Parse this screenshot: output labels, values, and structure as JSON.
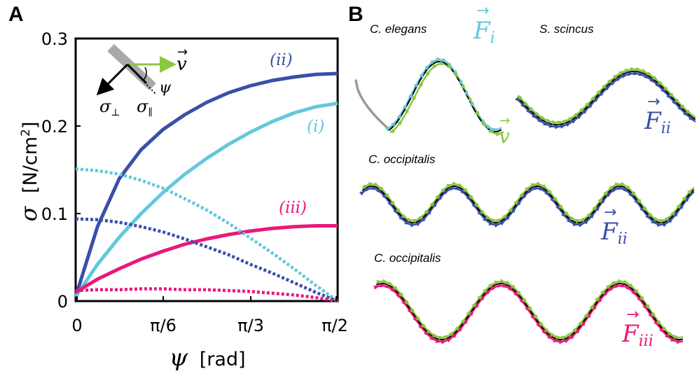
{
  "panel_a": {
    "letter": "A",
    "ylabel_symbol": "σ",
    "ylabel_units": "[N/cm",
    "ylabel_sup": "2",
    "ylabel_close": "]",
    "xlabel_symbol": "ψ",
    "xlabel_units": "[rad]",
    "xticks": [
      "0",
      "π/6",
      "π/3",
      "π/2"
    ],
    "yticks": [
      "0",
      "0.1",
      "0.2",
      "0.3"
    ],
    "inset": {
      "v_label": "v",
      "v_arrow": "→",
      "psi": "ψ",
      "sigma_perp": "σ",
      "perp_sub": "⊥",
      "sigma_par": "σ",
      "par_sub": "∥"
    },
    "curve_labels": {
      "ii": "(ii)",
      "i": "(i)",
      "iii": "(iii)"
    }
  },
  "panel_b": {
    "letter": "B",
    "species": [
      "C. elegans",
      "S. scincus",
      "C. occipitalis",
      "C. occipitalis"
    ],
    "force_labels": {
      "i": "F",
      "i_sub": "i",
      "ii": "F",
      "ii_sub": "ii",
      "iii": "F",
      "iii_sub": "iii",
      "v": "v",
      "arrow": "→"
    }
  },
  "colors": {
    "dark_blue": "#3b4fa8",
    "light_blue": "#63c8dc",
    "magenta": "#e8197a",
    "green": "#8cc63f",
    "gray": "#9a9a9a",
    "black": "#000000"
  },
  "chart_data": {
    "type": "line",
    "xlabel": "ψ [rad]",
    "ylabel": "σ [N/cm²]",
    "xlim": [
      0,
      1.5708
    ],
    "ylim": [
      0,
      0.3
    ],
    "grid": false,
    "series": [
      {
        "name": "(ii)",
        "style": "solid",
        "color": "#3b4fa8",
        "x": [
          0,
          0.1309,
          0.2618,
          0.3927,
          0.5236,
          0.6545,
          0.7854,
          0.9163,
          1.0472,
          1.1781,
          1.309,
          1.4399,
          1.5708
        ],
        "y": [
          0.005,
          0.085,
          0.14,
          0.173,
          0.196,
          0.213,
          0.227,
          0.238,
          0.246,
          0.252,
          0.256,
          0.259,
          0.26
        ]
      },
      {
        "name": "(i)",
        "style": "solid",
        "color": "#63c8dc",
        "x": [
          0,
          0.1309,
          0.2618,
          0.3927,
          0.5236,
          0.6545,
          0.7854,
          0.9163,
          1.0472,
          1.1781,
          1.309,
          1.4399,
          1.5708
        ],
        "y": [
          0.005,
          0.042,
          0.073,
          0.1,
          0.124,
          0.145,
          0.163,
          0.179,
          0.193,
          0.205,
          0.215,
          0.222,
          0.226
        ]
      },
      {
        "name": "(iii)",
        "style": "solid",
        "color": "#e8197a",
        "x": [
          0,
          0.1309,
          0.2618,
          0.3927,
          0.5236,
          0.6545,
          0.7854,
          0.9163,
          1.0472,
          1.1781,
          1.309,
          1.4399,
          1.5708
        ],
        "y": [
          0.01,
          0.025,
          0.037,
          0.048,
          0.057,
          0.065,
          0.071,
          0.076,
          0.08,
          0.083,
          0.085,
          0.086,
          0.086
        ]
      },
      {
        "name": "",
        "style": "dotted",
        "color": "#63c8dc",
        "x": [
          0,
          0.1309,
          0.2618,
          0.3927,
          0.5236,
          0.6545,
          0.7854,
          0.9163,
          1.0472,
          1.1781,
          1.309,
          1.4399,
          1.5708
        ],
        "y": [
          0.151,
          0.149,
          0.145,
          0.138,
          0.129,
          0.117,
          0.104,
          0.089,
          0.072,
          0.055,
          0.037,
          0.018,
          0.0
        ]
      },
      {
        "name": "",
        "style": "dotted",
        "color": "#3b4fa8",
        "x": [
          0,
          0.1309,
          0.2618,
          0.3927,
          0.5236,
          0.6545,
          0.7854,
          0.9163,
          1.0472,
          1.1781,
          1.309,
          1.4399,
          1.5708
        ],
        "y": [
          0.094,
          0.093,
          0.09,
          0.085,
          0.079,
          0.071,
          0.062,
          0.053,
          0.042,
          0.032,
          0.021,
          0.01,
          0.0
        ]
      },
      {
        "name": "",
        "style": "dotted",
        "color": "#e8197a",
        "x": [
          0,
          0.1309,
          0.2618,
          0.3927,
          0.5236,
          0.6545,
          0.7854,
          0.9163,
          1.0472,
          1.1781,
          1.309,
          1.4399,
          1.5708
        ],
        "y": [
          0.012,
          0.013,
          0.013,
          0.014,
          0.014,
          0.013,
          0.013,
          0.012,
          0.011,
          0.009,
          0.007,
          0.004,
          0.0
        ]
      }
    ]
  }
}
